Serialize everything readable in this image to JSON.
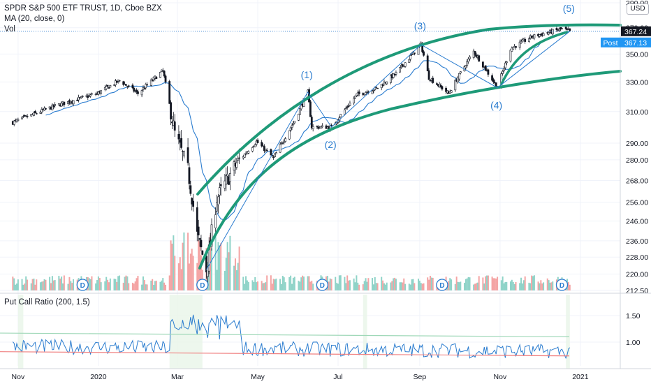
{
  "header": {
    "title": "SPDR S&P 500 ETF TRUST, 1D, Cboe BZX",
    "ma_label": "MA (20, close, 0)",
    "vol_label": "Vol",
    "currency": "USD",
    "indicator_label": "Put Call Ratio (200, 1.5)"
  },
  "price_tags": {
    "last": "367.24",
    "post_label": "Post",
    "post_value": "367.13"
  },
  "dividend_marker": "D",
  "wave_labels": [
    "(1)",
    "(2)",
    "(3)",
    "(4)",
    "(5)"
  ],
  "colors": {
    "channel": "#1e9a78",
    "wave": "#2a7ccf",
    "ma": "#2a7ccf",
    "up": "#26a69a",
    "down": "#ef5350",
    "up_vol": "#8fd3c8",
    "down_vol": "#f4a4a4",
    "pcr_line": "#2a7ccf",
    "pcr_upper": "#9fd8b8",
    "pcr_lower": "#f08080"
  },
  "chart_data": {
    "type": "candlestick",
    "title": "SPDR S&P 500 ETF TRUST, 1D, Cboe BZX",
    "x_tick_labels": [
      "Nov",
      "2020",
      "Mar",
      "May",
      "Jul",
      "Sep",
      "Nov",
      "2021"
    ],
    "price_axis_ticks": [
      "390.00",
      "370.00",
      "350.00",
      "330.00",
      "310.00",
      "290.00",
      "280.00",
      "268.00",
      "256.00",
      "246.00",
      "236.00",
      "228.00",
      "220.00",
      "212.50"
    ],
    "price_scale": "log",
    "pcr_axis_ticks": [
      "1.50",
      "1.00"
    ],
    "last_price": 367.24,
    "post_price": 367.13,
    "price_path": [
      {
        "date": "2019-10-28",
        "close": 303
      },
      {
        "date": "2019-11-30",
        "close": 314
      },
      {
        "date": "2019-12-31",
        "close": 322
      },
      {
        "date": "2020-01-17",
        "close": 331
      },
      {
        "date": "2020-01-31",
        "close": 322
      },
      {
        "date": "2020-02-19",
        "close": 338
      },
      {
        "date": "2020-02-28",
        "close": 296
      },
      {
        "date": "2020-03-09",
        "close": 274
      },
      {
        "date": "2020-03-16",
        "close": 239
      },
      {
        "date": "2020-03-23",
        "close": 222
      },
      {
        "date": "2020-03-31",
        "close": 258
      },
      {
        "date": "2020-04-15",
        "close": 278
      },
      {
        "date": "2020-04-30",
        "close": 291
      },
      {
        "date": "2020-05-13",
        "close": 281
      },
      {
        "date": "2020-05-29",
        "close": 304
      },
      {
        "date": "2020-06-08",
        "close": 323
      },
      {
        "date": "2020-06-11",
        "close": 300
      },
      {
        "date": "2020-06-26",
        "close": 300
      },
      {
        "date": "2020-07-15",
        "close": 321
      },
      {
        "date": "2020-07-31",
        "close": 326
      },
      {
        "date": "2020-08-14",
        "close": 336
      },
      {
        "date": "2020-09-02",
        "close": 357
      },
      {
        "date": "2020-09-08",
        "close": 333
      },
      {
        "date": "2020-09-23",
        "close": 322
      },
      {
        "date": "2020-10-12",
        "close": 352
      },
      {
        "date": "2020-10-30",
        "close": 326
      },
      {
        "date": "2020-11-09",
        "close": 354
      },
      {
        "date": "2020-11-25",
        "close": 363
      },
      {
        "date": "2020-12-18",
        "close": 369
      },
      {
        "date": "2020-12-24",
        "close": 367.24
      }
    ],
    "wave_points": [
      {
        "label": "(1)",
        "date": "2020-06-08",
        "price": 323
      },
      {
        "label": "(2)",
        "date": "2020-06-26",
        "price": 300
      },
      {
        "label": "(3)",
        "date": "2020-09-02",
        "price": 357
      },
      {
        "label": "(4)",
        "date": "2020-10-30",
        "price": 326
      },
      {
        "label": "(5)",
        "date": "2020-12-24",
        "price": 367.24
      }
    ],
    "dividend_dates": [
      "2019-12-20",
      "2020-03-20",
      "2020-06-19",
      "2020-09-18",
      "2020-12-18"
    ]
  }
}
